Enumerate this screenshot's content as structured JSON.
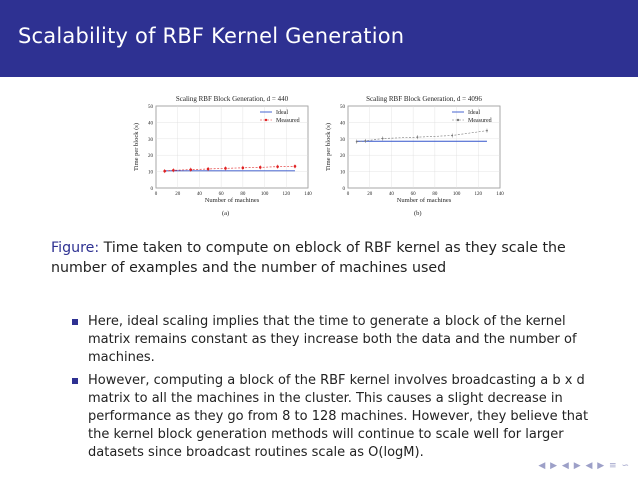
{
  "slide": {
    "title": "Scalability of RBF Kernel Generation",
    "caption_label": "Figure:",
    "caption_text": " Time taken to compute on eblock of RBF kernel as they scale the number of examples and the number of machines used",
    "bullets": [
      "Here, ideal scaling implies that the time to generate a block of the kernel matrix remains constant as they increase both the data and the number of machines.",
      "However, computing a block of the RBF kernel involves broadcasting a b x d matrix to all the machines in the cluster. This causes a slight decrease in performance as they go from 8 to 128 machines. However, they believe that the kernel block generation methods will continue to scale well for larger datasets since broadcast routines scale as O(logM)."
    ],
    "nav_symbols": "◀ ▶ ◀ ▶ ◀ ▶ ≡ ∽"
  },
  "colors": {
    "accent": "#2e3192",
    "ideal": "#3355cc",
    "measured_a": "#e02020",
    "measured_b": "#777777"
  },
  "chart_data": [
    {
      "type": "line",
      "title": "Scaling RBF Block Generation, d = 440",
      "xlabel": "Number of machines",
      "ylabel": "Time per block (s)",
      "sublabel": "(a)",
      "xlim": [
        0,
        140
      ],
      "ylim": [
        0,
        50
      ],
      "xticks": [
        0,
        20,
        40,
        60,
        80,
        100,
        120,
        140
      ],
      "yticks": [
        0,
        10,
        20,
        30,
        40,
        50
      ],
      "x": [
        8,
        16,
        32,
        48,
        64,
        80,
        96,
        112,
        128
      ],
      "series": [
        {
          "name": "Ideal",
          "values": [
            10.5,
            10.5,
            10.5,
            10.5,
            10.5,
            10.5,
            10.5,
            10.5,
            10.5
          ]
        },
        {
          "name": "Measured",
          "values": [
            10.3,
            10.8,
            11.2,
            11.6,
            12.0,
            12.3,
            12.6,
            13.0,
            13.2
          ]
        }
      ],
      "legend": "top-right"
    },
    {
      "type": "line",
      "title": "Scaling RBF Block Generation, d = 4096",
      "xlabel": "Number of machines",
      "ylabel": "Time per block (s)",
      "sublabel": "(b)",
      "xlim": [
        0,
        140
      ],
      "ylim": [
        0,
        50
      ],
      "xticks": [
        0,
        20,
        40,
        60,
        80,
        100,
        120,
        140
      ],
      "yticks": [
        0,
        10,
        20,
        30,
        40,
        50
      ],
      "x": [
        8,
        16,
        32,
        64,
        96,
        128
      ],
      "series": [
        {
          "name": "Ideal",
          "values": [
            28.5,
            28.5,
            28.5,
            28.5,
            28.5,
            28.5
          ]
        },
        {
          "name": "Measured",
          "values": [
            28.3,
            28.7,
            30.2,
            31.0,
            32.0,
            35.0
          ]
        }
      ],
      "legend": "top-right"
    }
  ]
}
